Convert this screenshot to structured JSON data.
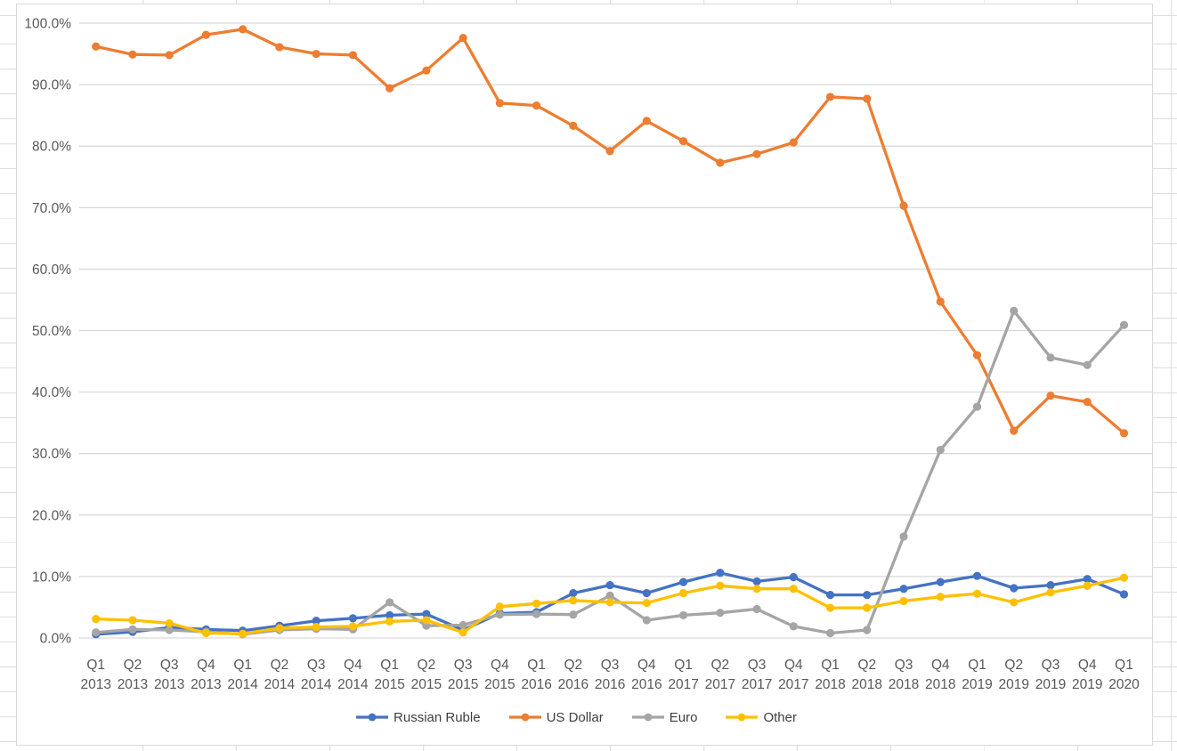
{
  "chart_data": {
    "type": "line",
    "title": "",
    "xlabel": "",
    "ylabel": "",
    "ylim": [
      0,
      100
    ],
    "grid": "horizontal",
    "legend_position": "bottom",
    "y_ticks": [
      "0.0%",
      "10.0%",
      "20.0%",
      "30.0%",
      "40.0%",
      "50.0%",
      "60.0%",
      "70.0%",
      "80.0%",
      "90.0%",
      "100.0%"
    ],
    "categories": [
      {
        "q": "Q1",
        "year": "2013"
      },
      {
        "q": "Q2",
        "year": "2013"
      },
      {
        "q": "Q3",
        "year": "2013"
      },
      {
        "q": "Q4",
        "year": "2013"
      },
      {
        "q": "Q1",
        "year": "2014"
      },
      {
        "q": "Q2",
        "year": "2014"
      },
      {
        "q": "Q3",
        "year": "2014"
      },
      {
        "q": "Q4",
        "year": "2014"
      },
      {
        "q": "Q1",
        "year": "2015"
      },
      {
        "q": "Q2",
        "year": "2015"
      },
      {
        "q": "Q3",
        "year": "2015"
      },
      {
        "q": "Q4",
        "year": "2015"
      },
      {
        "q": "Q1",
        "year": "2016"
      },
      {
        "q": "Q2",
        "year": "2016"
      },
      {
        "q": "Q3",
        "year": "2016"
      },
      {
        "q": "Q4",
        "year": "2016"
      },
      {
        "q": "Q1",
        "year": "2017"
      },
      {
        "q": "Q2",
        "year": "2017"
      },
      {
        "q": "Q3",
        "year": "2017"
      },
      {
        "q": "Q4",
        "year": "2017"
      },
      {
        "q": "Q1",
        "year": "2018"
      },
      {
        "q": "Q2",
        "year": "2018"
      },
      {
        "q": "Q3",
        "year": "2018"
      },
      {
        "q": "Q4",
        "year": "2018"
      },
      {
        "q": "Q1",
        "year": "2019"
      },
      {
        "q": "Q2",
        "year": "2019"
      },
      {
        "q": "Q3",
        "year": "2019"
      },
      {
        "q": "Q4",
        "year": "2019"
      },
      {
        "q": "Q1",
        "year": "2020"
      }
    ],
    "series": [
      {
        "name": "Russian Ruble",
        "color": "#4472C4",
        "values": [
          0.6,
          1.0,
          1.7,
          1.4,
          1.2,
          2.0,
          2.8,
          3.2,
          3.7,
          3.9,
          1.3,
          4.0,
          4.2,
          7.3,
          8.6,
          7.3,
          9.1,
          10.6,
          9.2,
          9.9,
          7.0,
          7.0,
          8.0,
          9.1,
          10.1,
          8.1,
          8.6,
          9.6,
          7.1
        ]
      },
      {
        "name": "US Dollar",
        "color": "#ED7D31",
        "values": [
          96.2,
          94.9,
          94.8,
          98.1,
          99.0,
          96.1,
          95.0,
          94.8,
          89.4,
          92.3,
          97.6,
          87.0,
          86.6,
          83.3,
          79.2,
          84.1,
          80.8,
          77.3,
          78.7,
          80.6,
          88.0,
          87.7,
          70.3,
          54.7,
          46.0,
          33.7,
          39.4,
          38.4,
          33.3
        ]
      },
      {
        "name": "Euro",
        "color": "#A5A5A5",
        "values": [
          0.9,
          1.4,
          1.3,
          1.0,
          0.6,
          1.3,
          1.5,
          1.4,
          5.8,
          2.0,
          2.1,
          3.8,
          3.9,
          3.8,
          6.9,
          2.9,
          3.7,
          4.1,
          4.7,
          1.9,
          0.8,
          1.3,
          16.5,
          30.6,
          37.6,
          53.2,
          45.6,
          44.4,
          50.9
        ]
      },
      {
        "name": "Other",
        "color": "#FFC000",
        "values": [
          3.1,
          2.9,
          2.4,
          0.8,
          0.7,
          1.6,
          1.8,
          1.9,
          2.7,
          2.9,
          0.9,
          5.1,
          5.6,
          6.1,
          5.8,
          5.7,
          7.3,
          8.5,
          8.0,
          8.0,
          4.9,
          4.9,
          6.0,
          6.7,
          7.2,
          5.8,
          7.4,
          8.5,
          9.8
        ]
      }
    ]
  },
  "style": {
    "gridline_color": "#D9D9D9",
    "axis_label_color": "#595959",
    "legend_text_color": "#404040",
    "frame_color": "#D9D9D9"
  }
}
